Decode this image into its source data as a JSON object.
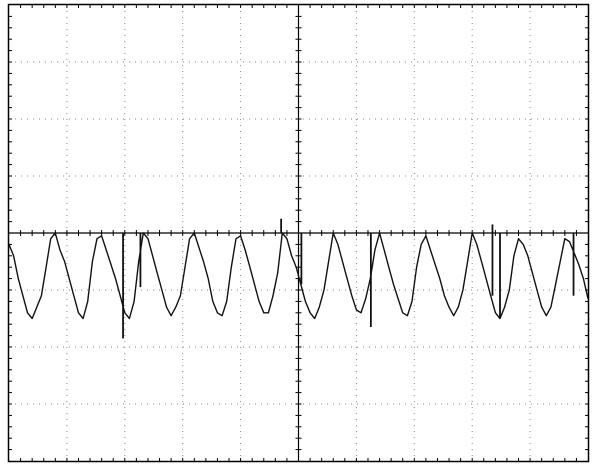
{
  "chart_data": {
    "type": "line",
    "xlim": [
      0,
      10
    ],
    "ylim": [
      -4,
      4
    ],
    "grid": true,
    "grid_divisions": {
      "x": 10,
      "y": 8
    },
    "center_axes": true,
    "colors": {
      "trace": "#111111",
      "grid": "#8a8a8a",
      "frame": "#000000",
      "background": "#ffffff"
    },
    "series": [
      {
        "x": [
          0.0,
          0.08,
          0.16,
          0.24,
          0.32,
          0.4,
          0.48,
          0.56,
          0.64,
          0.72,
          0.8,
          0.88,
          0.96,
          1.04,
          1.12,
          1.2,
          1.28,
          1.36,
          1.44,
          1.52,
          1.6,
          1.68,
          1.76,
          1.84,
          1.92,
          2.0,
          2.08,
          2.16,
          2.24,
          2.32,
          2.4,
          2.48,
          2.56,
          2.64,
          2.72,
          2.8,
          2.88,
          2.96,
          3.04,
          3.12,
          3.2,
          3.28,
          3.36,
          3.44,
          3.52,
          3.6,
          3.68,
          3.76,
          3.84,
          3.92,
          4.0,
          4.08,
          4.16,
          4.24,
          4.32,
          4.4,
          4.48,
          4.56,
          4.64,
          4.72,
          4.8,
          4.88,
          4.96,
          5.04,
          5.12,
          5.2,
          5.28,
          5.36,
          5.44,
          5.52,
          5.6,
          5.68,
          5.76,
          5.84,
          5.92,
          6.0,
          6.08,
          6.16,
          6.24,
          6.32,
          6.4,
          6.48,
          6.56,
          6.64,
          6.72,
          6.8,
          6.88,
          6.96,
          7.04,
          7.12,
          7.2,
          7.28,
          7.36,
          7.44,
          7.52,
          7.6,
          7.68,
          7.76,
          7.84,
          7.92,
          8.0,
          8.08,
          8.16,
          8.24,
          8.32,
          8.4,
          8.48,
          8.56,
          8.64,
          8.72,
          8.8,
          8.88,
          8.96,
          9.04,
          9.12,
          9.2,
          9.28,
          9.36,
          9.44,
          9.52,
          9.6,
          9.68,
          9.76,
          9.84,
          9.92,
          10.0
        ],
        "y": [
          -0.2,
          -0.4,
          -0.8,
          -1.1,
          -1.4,
          -1.5,
          -1.3,
          -1.1,
          -0.6,
          -0.1,
          0.0,
          -0.3,
          -0.5,
          -0.8,
          -1.1,
          -1.4,
          -1.5,
          -1.2,
          -0.5,
          -0.1,
          -0.05,
          -0.3,
          -0.55,
          -0.8,
          -1.1,
          -1.4,
          -1.5,
          -1.2,
          -0.5,
          0.0,
          -0.1,
          -0.4,
          -0.7,
          -1.0,
          -1.3,
          -1.45,
          -1.3,
          -1.1,
          -0.6,
          -0.1,
          0.0,
          -0.25,
          -0.5,
          -0.8,
          -1.2,
          -1.4,
          -1.45,
          -1.2,
          -0.6,
          -0.1,
          -0.05,
          -0.3,
          -0.6,
          -0.9,
          -1.2,
          -1.4,
          -1.4,
          -1.1,
          -0.7,
          0.0,
          -0.1,
          -0.4,
          -0.6,
          -0.9,
          -1.2,
          -1.4,
          -1.5,
          -1.3,
          -1.0,
          -0.5,
          0.0,
          -0.2,
          -0.5,
          -0.8,
          -1.1,
          -1.35,
          -1.4,
          -1.15,
          -0.8,
          -0.3,
          0.0,
          -0.3,
          -0.6,
          -0.9,
          -1.15,
          -1.4,
          -1.45,
          -1.2,
          -0.6,
          -0.2,
          -0.05,
          -0.3,
          -0.55,
          -0.8,
          -1.1,
          -1.3,
          -1.45,
          -1.3,
          -1.0,
          -0.5,
          0.0,
          -0.2,
          -0.5,
          -0.8,
          -1.1,
          -1.4,
          -1.5,
          -1.3,
          -1.0,
          -0.4,
          -0.1,
          -0.2,
          -0.4,
          -0.7,
          -1.0,
          -1.3,
          -1.45,
          -1.3,
          -0.9,
          -0.5,
          -0.1,
          -0.15,
          -0.35,
          -0.55,
          -0.8,
          -1.15
        ]
      }
    ],
    "spikes": [
      {
        "x": 1.97,
        "y": -1.85
      },
      {
        "x": 2.27,
        "y": -0.95
      },
      {
        "x": 4.7,
        "y": 0.25
      },
      {
        "x": 5.05,
        "y": -0.9
      },
      {
        "x": 6.25,
        "y": -1.65
      },
      {
        "x": 8.35,
        "y": 0.15
      },
      {
        "x": 8.48,
        "y": -1.25
      },
      {
        "x": 9.75,
        "y": -1.1
      }
    ]
  }
}
